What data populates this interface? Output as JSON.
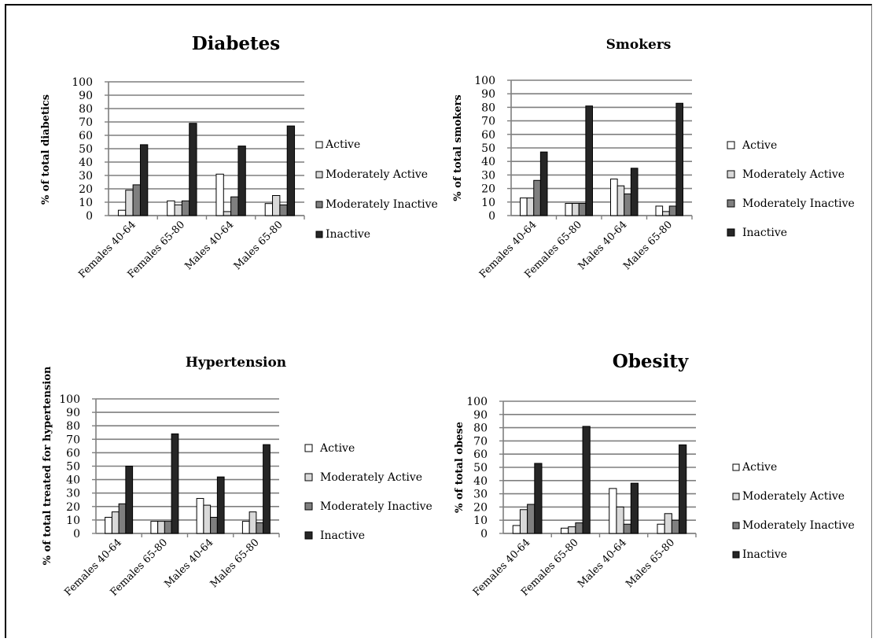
{
  "colors": {
    "Active": "#ffffff",
    "Moderately Active": "#d9d9d9",
    "Moderately Inactive": "#7f7f7f",
    "Inactive": "#262626"
  },
  "chart_data": [
    {
      "type": "bar",
      "title": "Diabetes",
      "ylabel": "% of total diabetics",
      "categories": [
        "Females 40-64",
        "Females 65-80",
        "Males 40-64",
        "Males 65-80"
      ],
      "ylim": [
        0,
        100
      ],
      "yticks": [
        0,
        10,
        20,
        30,
        40,
        50,
        60,
        70,
        80,
        90,
        100
      ],
      "grid": true,
      "legend": "right",
      "series": [
        {
          "name": "Active",
          "values": [
            4,
            11,
            31,
            9
          ]
        },
        {
          "name": "Moderately Active",
          "values": [
            19,
            8,
            3,
            15
          ]
        },
        {
          "name": "Moderately Inactive",
          "values": [
            23,
            11,
            14,
            8
          ]
        },
        {
          "name": "Inactive",
          "values": [
            53,
            69,
            52,
            67
          ]
        }
      ]
    },
    {
      "type": "bar",
      "title": "Smokers",
      "ylabel": "% of total smokers",
      "categories": [
        "Females 40-64",
        "Females 65-80",
        "Males 40-64",
        "Males 65-80"
      ],
      "ylim": [
        0,
        100
      ],
      "yticks": [
        0,
        10,
        20,
        30,
        40,
        50,
        60,
        70,
        80,
        90,
        100
      ],
      "grid": true,
      "legend": "right",
      "series": [
        {
          "name": "Active",
          "values": [
            13,
            9,
            27,
            7
          ]
        },
        {
          "name": "Moderately Active",
          "values": [
            13,
            9,
            22,
            3
          ]
        },
        {
          "name": "Moderately Inactive",
          "values": [
            26,
            9,
            16,
            7
          ]
        },
        {
          "name": "Inactive",
          "values": [
            47,
            81,
            35,
            83
          ]
        }
      ]
    },
    {
      "type": "bar",
      "title": "Hypertension",
      "ylabel": "% of total treated for hypertension",
      "categories": [
        "Females 40-64",
        "Females 65-80",
        "Males 40-64",
        "Males 65-80"
      ],
      "ylim": [
        0,
        100
      ],
      "yticks": [
        0,
        10,
        20,
        30,
        40,
        50,
        60,
        70,
        80,
        90,
        100
      ],
      "grid": true,
      "legend": "right",
      "series": [
        {
          "name": "Active",
          "values": [
            12,
            9,
            26,
            9
          ]
        },
        {
          "name": "Moderately Active",
          "values": [
            16,
            9,
            21,
            16
          ]
        },
        {
          "name": "Moderately Inactive",
          "values": [
            22,
            9,
            12,
            8
          ]
        },
        {
          "name": "Inactive",
          "values": [
            50,
            74,
            42,
            66
          ]
        }
      ]
    },
    {
      "type": "bar",
      "title": "Obesity",
      "ylabel": "% of total obese",
      "categories": [
        "Females 40-64",
        "Females 65-80",
        "Males 40-64",
        "Males 65-80"
      ],
      "ylim": [
        0,
        100
      ],
      "yticks": [
        0,
        10,
        20,
        30,
        40,
        50,
        60,
        70,
        80,
        90,
        100
      ],
      "grid": true,
      "legend": "right",
      "series": [
        {
          "name": "Active",
          "values": [
            6,
            4,
            34,
            7
          ]
        },
        {
          "name": "Moderately Active",
          "values": [
            18,
            5,
            20,
            15
          ]
        },
        {
          "name": "Moderately Inactive",
          "values": [
            22,
            8,
            7,
            10
          ]
        },
        {
          "name": "Inactive",
          "values": [
            53,
            81,
            38,
            67
          ]
        }
      ]
    }
  ]
}
